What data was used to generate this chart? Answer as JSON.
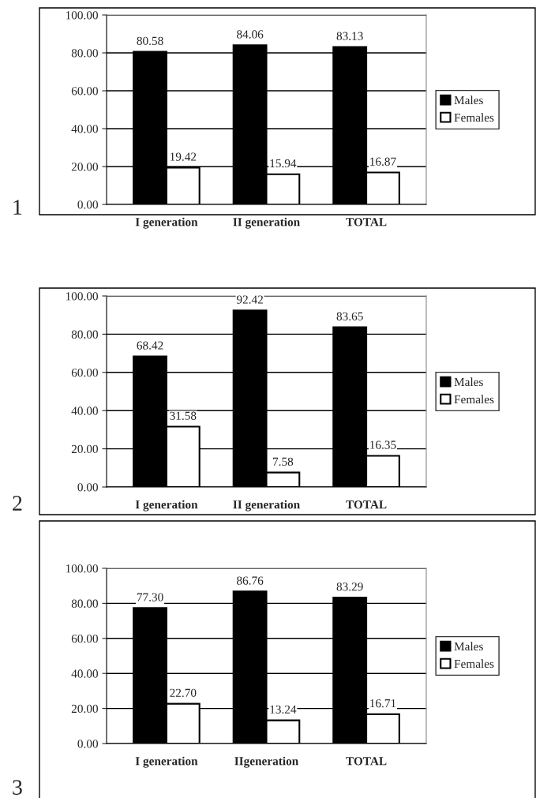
{
  "chart_data": [
    {
      "type": "bar",
      "categories": [
        "I generation",
        "II generation",
        "TOTAL"
      ],
      "series": [
        {
          "name": "Males",
          "color": "#000000",
          "values": [
            80.58,
            84.06,
            83.13
          ],
          "value_labels": [
            "80.58",
            "84.06",
            "83.13"
          ]
        },
        {
          "name": "Females",
          "color": "#ffffff",
          "values": [
            19.42,
            15.94,
            16.87
          ],
          "value_labels": [
            "19.42",
            "15.94",
            "16.87"
          ]
        }
      ],
      "ylim": [
        0,
        100
      ],
      "yticks": [
        {
          "value": 0,
          "label": "0.00"
        },
        {
          "value": 20,
          "label": "20.00"
        },
        {
          "value": 40,
          "label": "40.00"
        },
        {
          "value": 60,
          "label": "60.00"
        },
        {
          "value": 80,
          "label": "80.00"
        },
        {
          "value": 100,
          "label": "100.00"
        }
      ],
      "grid": "y",
      "legend": "right",
      "annotations": [
        "1"
      ]
    },
    {
      "type": "bar",
      "categories": [
        "I generation",
        "II generation",
        "TOTAL"
      ],
      "series": [
        {
          "name": "Males",
          "color": "#000000",
          "values": [
            68.42,
            92.42,
            83.65
          ],
          "value_labels": [
            "68.42",
            "92.42",
            "83.65"
          ]
        },
        {
          "name": "Females",
          "color": "#ffffff",
          "values": [
            31.58,
            7.58,
            16.35
          ],
          "value_labels": [
            "31.58",
            "7.58",
            "16.35"
          ]
        }
      ],
      "ylim": [
        0,
        100
      ],
      "yticks": [
        {
          "value": 0,
          "label": "0.00"
        },
        {
          "value": 20,
          "label": "20.00"
        },
        {
          "value": 40,
          "label": "40.00"
        },
        {
          "value": 60,
          "label": "60.00"
        },
        {
          "value": 80,
          "label": "80.00"
        },
        {
          "value": 100,
          "label": "100.00"
        }
      ],
      "grid": "y",
      "legend": "right",
      "annotations": [
        "2"
      ]
    },
    {
      "type": "bar",
      "categories": [
        "I generation",
        "IIgeneration",
        "TOTAL"
      ],
      "series": [
        {
          "name": "Males",
          "color": "#000000",
          "values": [
            77.3,
            86.76,
            83.29
          ],
          "value_labels": [
            "77.30",
            "86.76",
            "83.29"
          ]
        },
        {
          "name": "Females",
          "color": "#ffffff",
          "values": [
            22.7,
            13.24,
            16.71
          ],
          "value_labels": [
            "22.70",
            "13.24",
            "16.71"
          ]
        }
      ],
      "ylim": [
        0,
        100
      ],
      "yticks": [
        {
          "value": 0,
          "label": "0.00"
        },
        {
          "value": 20,
          "label": "20.00"
        },
        {
          "value": 40,
          "label": "40.00"
        },
        {
          "value": 60,
          "label": "60.00"
        },
        {
          "value": 80,
          "label": "80.00"
        },
        {
          "value": 100,
          "label": "100.00"
        }
      ],
      "grid": "y",
      "legend": "right",
      "annotations": [
        "3"
      ]
    }
  ]
}
